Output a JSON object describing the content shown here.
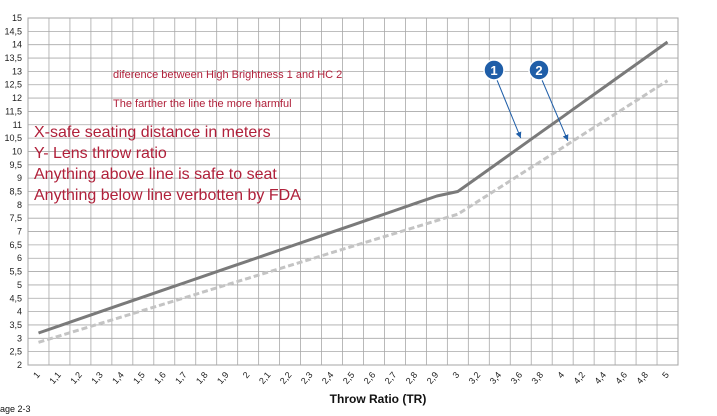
{
  "chart_data": {
    "type": "line",
    "x": [
      1,
      1.1,
      1.2,
      1.3,
      1.4,
      1.5,
      1.6,
      1.7,
      1.8,
      1.9,
      2,
      2.1,
      2.2,
      2.3,
      2.4,
      2.5,
      2.6,
      2.7,
      2.8,
      2.9,
      3,
      3.2,
      3.4,
      3.6,
      3.8,
      4,
      4.2,
      4.4,
      4.6,
      4.8,
      5
    ],
    "x_tick_labels": [
      "1",
      "1,1",
      "1,2",
      "1,3",
      "1,4",
      "1,5",
      "1,6",
      "1,7",
      "1,8",
      "1,9",
      "2",
      "2,1",
      "2,2",
      "2,3",
      "2,4",
      "2,5",
      "2,6",
      "2,7",
      "2,8",
      "2,9",
      "3",
      "3,2",
      "3,4",
      "3,6",
      "3,8",
      "4",
      "4,2",
      "4,4",
      "4,6",
      "4,8",
      "5"
    ],
    "y_tick_labels": [
      "2",
      "2,5",
      "3",
      "3,5",
      "4",
      "4,5",
      "5",
      "5,5",
      "6",
      "6,5",
      "7",
      "7,5",
      "8",
      "8,5",
      "9",
      "9,5",
      "10",
      "10,5",
      "11",
      "11,5",
      "12",
      "12,5",
      "13",
      "13,5",
      "14",
      "14,5",
      "15"
    ],
    "series": [
      {
        "values": [
          3.2,
          3.47,
          3.74,
          4.01,
          4.28,
          4.55,
          4.82,
          5.09,
          5.36,
          5.63,
          5.9,
          6.17,
          6.44,
          6.71,
          6.98,
          7.25,
          7.52,
          7.79,
          8.06,
          8.33,
          8.5,
          9.06,
          9.62,
          10.18,
          10.74,
          11.3,
          11.86,
          12.42,
          12.98,
          13.54,
          14.1
        ],
        "color": "#7a7a7a",
        "style": "solid"
      },
      {
        "values": [
          2.85,
          3.09,
          3.33,
          3.57,
          3.81,
          4.05,
          4.29,
          4.53,
          4.77,
          5.01,
          5.25,
          5.49,
          5.73,
          5.97,
          6.21,
          6.45,
          6.69,
          6.93,
          7.17,
          7.41,
          7.65,
          8.15,
          8.65,
          9.15,
          9.65,
          10.15,
          10.65,
          11.15,
          11.65,
          12.15,
          12.65
        ],
        "color": "#c4c4c4",
        "style": "dashed"
      }
    ],
    "ylim": [
      2,
      15
    ],
    "xlabel": "Throw Ratio (TR)",
    "ylabel": "",
    "title": "",
    "grid": true,
    "annotations": {
      "small": [
        "diference between High Brightness 1 and HC 2",
        "The farther the line the more harmful"
      ],
      "large": [
        "X-safe seating distance in meters",
        "Y- Lens throw ratio",
        "Anything above line is safe to seat",
        "Anything below line verbotten by FDA"
      ],
      "markers": [
        {
          "label": "1",
          "color": "#1f5ea8",
          "target_x": 3.6,
          "target_y": 10.5
        },
        {
          "label": "2",
          "color": "#1f5ea8",
          "target_x": 4.05,
          "target_y": 10.4
        }
      ]
    }
  },
  "footer": {
    "page_ref": "age 2-3"
  }
}
